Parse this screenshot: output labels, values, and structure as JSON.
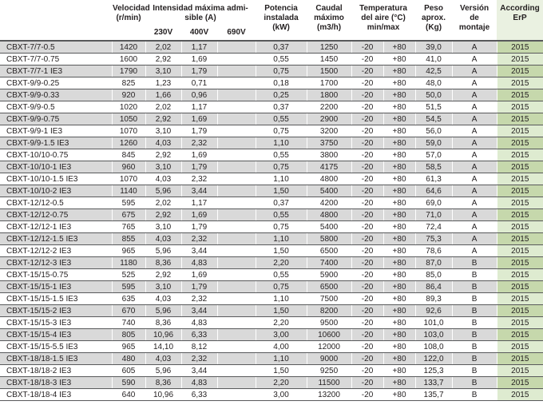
{
  "colors": {
    "row_shade": "#d9d9d9",
    "erp_green_dark": "#c6d8ac",
    "erp_green_light": "#deebd0",
    "erp_header_green": "#eaf1e1",
    "border_dark": "#58595b"
  },
  "table": {
    "header": {
      "model": "",
      "velocidad": "Velocidad\n(r/min)",
      "intensidad": "Intensidad máxima admi-\nsible (A)",
      "v230": "230V",
      "v400": "400V",
      "v690": "690V",
      "potencia": "Potencia\ninstalada\n(kW)",
      "caudal": "Caudal\nmáximo\n(m3/h)",
      "temperatura": "Temperatura\ndel aire (°C)\nmin/max",
      "peso": "Peso\naprox.\n(Kg)",
      "version": "Versión\nde\nmontaje",
      "erp": "According\nErP"
    },
    "column_keys": [
      "model",
      "velocidad-rpm",
      "intensidad-230v",
      "intensidad-400v",
      "intensidad-690v",
      "potencia-kw",
      "caudal-m3h",
      "temp-min",
      "temp-max",
      "peso-kg",
      "version-montaje",
      "according-erp"
    ],
    "rows": [
      [
        "CBXT-7/7-0.5",
        "1420",
        "2,02",
        "1,17",
        "",
        "0,37",
        "1250",
        "-20",
        "+80",
        "39,0",
        "A",
        "2015"
      ],
      [
        "CBXT-7/7-0.75",
        "1600",
        "2,92",
        "1,69",
        "",
        "0,55",
        "1450",
        "-20",
        "+80",
        "41,0",
        "A",
        "2015"
      ],
      [
        "CBXT-7/7-1 IE3",
        "1790",
        "3,10",
        "1,79",
        "",
        "0,75",
        "1500",
        "-20",
        "+80",
        "42,5",
        "A",
        "2015"
      ],
      [
        "CBXT-9/9-0.25",
        "825",
        "1,23",
        "0,71",
        "",
        "0,18",
        "1700",
        "-20",
        "+80",
        "48,0",
        "A",
        "2015"
      ],
      [
        "CBXT-9/9-0.33",
        "920",
        "1,66",
        "0,96",
        "",
        "0,25",
        "1800",
        "-20",
        "+80",
        "50,0",
        "A",
        "2015"
      ],
      [
        "CBXT-9/9-0.5",
        "1020",
        "2,02",
        "1,17",
        "",
        "0,37",
        "2200",
        "-20",
        "+80",
        "51,5",
        "A",
        "2015"
      ],
      [
        "CBXT-9/9-0.75",
        "1050",
        "2,92",
        "1,69",
        "",
        "0,55",
        "2900",
        "-20",
        "+80",
        "54,5",
        "A",
        "2015"
      ],
      [
        "CBXT-9/9-1 IE3",
        "1070",
        "3,10",
        "1,79",
        "",
        "0,75",
        "3200",
        "-20",
        "+80",
        "56,0",
        "A",
        "2015"
      ],
      [
        "CBXT-9/9-1.5 IE3",
        "1260",
        "4,03",
        "2,32",
        "",
        "1,10",
        "3750",
        "-20",
        "+80",
        "59,0",
        "A",
        "2015"
      ],
      [
        "CBXT-10/10-0.75",
        "845",
        "2,92",
        "1,69",
        "",
        "0,55",
        "3800",
        "-20",
        "+80",
        "57,0",
        "A",
        "2015"
      ],
      [
        "CBXT-10/10-1 IE3",
        "960",
        "3,10",
        "1,79",
        "",
        "0,75",
        "4175",
        "-20",
        "+80",
        "58,5",
        "A",
        "2015"
      ],
      [
        "CBXT-10/10-1.5 IE3",
        "1070",
        "4,03",
        "2,32",
        "",
        "1,10",
        "4800",
        "-20",
        "+80",
        "61,3",
        "A",
        "2015"
      ],
      [
        "CBXT-10/10-2 IE3",
        "1140",
        "5,96",
        "3,44",
        "",
        "1,50",
        "5400",
        "-20",
        "+80",
        "64,6",
        "A",
        "2015"
      ],
      [
        "CBXT-12/12-0.5",
        "595",
        "2,02",
        "1,17",
        "",
        "0,37",
        "4200",
        "-20",
        "+80",
        "69,0",
        "A",
        "2015"
      ],
      [
        "CBXT-12/12-0.75",
        "675",
        "2,92",
        "1,69",
        "",
        "0,55",
        "4800",
        "-20",
        "+80",
        "71,0",
        "A",
        "2015"
      ],
      [
        "CBXT-12/12-1 IE3",
        "765",
        "3,10",
        "1,79",
        "",
        "0,75",
        "5400",
        "-20",
        "+80",
        "72,4",
        "A",
        "2015"
      ],
      [
        "CBXT-12/12-1.5 IE3",
        "855",
        "4,03",
        "2,32",
        "",
        "1,10",
        "5800",
        "-20",
        "+80",
        "75,3",
        "A",
        "2015"
      ],
      [
        "CBXT-12/12-2 IE3",
        "965",
        "5,96",
        "3,44",
        "",
        "1,50",
        "6500",
        "-20",
        "+80",
        "78,6",
        "A",
        "2015"
      ],
      [
        "CBXT-12/12-3 IE3",
        "1180",
        "8,36",
        "4,83",
        "",
        "2,20",
        "7400",
        "-20",
        "+80",
        "87,0",
        "B",
        "2015"
      ],
      [
        "CBXT-15/15-0.75",
        "525",
        "2,92",
        "1,69",
        "",
        "0,55",
        "5900",
        "-20",
        "+80",
        "85,0",
        "B",
        "2015"
      ],
      [
        "CBXT-15/15-1 IE3",
        "595",
        "3,10",
        "1,79",
        "",
        "0,75",
        "6500",
        "-20",
        "+80",
        "86,4",
        "B",
        "2015"
      ],
      [
        "CBXT-15/15-1.5 IE3",
        "635",
        "4,03",
        "2,32",
        "",
        "1,10",
        "7500",
        "-20",
        "+80",
        "89,3",
        "B",
        "2015"
      ],
      [
        "CBXT-15/15-2 IE3",
        "670",
        "5,96",
        "3,44",
        "",
        "1,50",
        "8200",
        "-20",
        "+80",
        "92,6",
        "B",
        "2015"
      ],
      [
        "CBXT-15/15-3 IE3",
        "740",
        "8,36",
        "4,83",
        "",
        "2,20",
        "9500",
        "-20",
        "+80",
        "101,0",
        "B",
        "2015"
      ],
      [
        "CBXT-15/15-4 IE3",
        "805",
        "10,96",
        "6,33",
        "",
        "3,00",
        "10600",
        "-20",
        "+80",
        "103,0",
        "B",
        "2015"
      ],
      [
        "CBXT-15/15-5.5 IE3",
        "965",
        "14,10",
        "8,12",
        "",
        "4,00",
        "12000",
        "-20",
        "+80",
        "108,0",
        "B",
        "2015"
      ],
      [
        "CBXT-18/18-1.5 IE3",
        "480",
        "4,03",
        "2,32",
        "",
        "1,10",
        "9000",
        "-20",
        "+80",
        "122,0",
        "B",
        "2015"
      ],
      [
        "CBXT-18/18-2 IE3",
        "605",
        "5,96",
        "3,44",
        "",
        "1,50",
        "9250",
        "-20",
        "+80",
        "125,3",
        "B",
        "2015"
      ],
      [
        "CBXT-18/18-3 IE3",
        "590",
        "8,36",
        "4,83",
        "",
        "2,20",
        "11500",
        "-20",
        "+80",
        "133,7",
        "B",
        "2015"
      ],
      [
        "CBXT-18/18-4 IE3",
        "640",
        "10,96",
        "6,33",
        "",
        "3,00",
        "13200",
        "-20",
        "+80",
        "135,7",
        "B",
        "2015"
      ]
    ]
  }
}
